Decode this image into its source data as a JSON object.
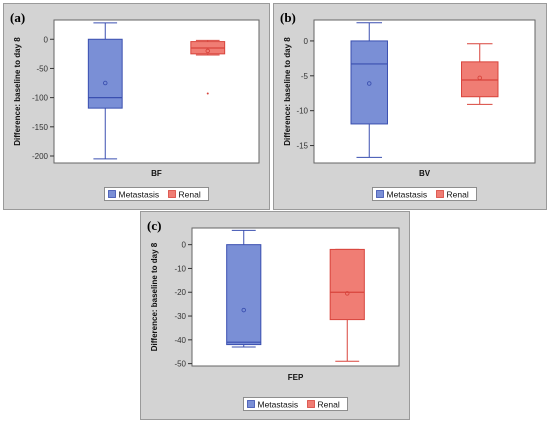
{
  "colors": {
    "metastasis_fill": "#7a8fd6",
    "metastasis_line": "#3a4fb0",
    "renal_fill": "#f07d74",
    "renal_line": "#d8443c",
    "panel_bg": "#d3d3d3"
  },
  "chart_data": [
    {
      "panel_label": "(a)",
      "type": "box",
      "xlabel": "BF",
      "ylabel": "Difference: baseline to day 8",
      "ylim": [
        -212,
        33
      ],
      "yticks": [
        0,
        -50,
        -100,
        -150,
        -200
      ],
      "legend": [
        "Metastasis",
        "Renal"
      ],
      "series": [
        {
          "name": "Metastasis",
          "whisker_low": -205,
          "q1": -118,
          "median": -100,
          "q3": 0,
          "whisker_high": 28,
          "mean": -75,
          "outliers": []
        },
        {
          "name": "Renal",
          "whisker_low": -27,
          "q1": -25,
          "median": -15,
          "q3": -4,
          "whisker_high": -2,
          "mean": -20,
          "outliers": [
            -93
          ]
        }
      ]
    },
    {
      "panel_label": "(b)",
      "type": "box",
      "xlabel": "BV",
      "ylabel": "Difference: baseline to day 8",
      "ylim": [
        -17.5,
        3
      ],
      "yticks": [
        0,
        -5,
        -10,
        -15
      ],
      "legend": [
        "Metastasis",
        "Renal"
      ],
      "series": [
        {
          "name": "Metastasis",
          "whisker_low": -16.7,
          "q1": -11.9,
          "median": -3.3,
          "q3": 0,
          "whisker_high": 2.6,
          "mean": -6.1,
          "outliers": []
        },
        {
          "name": "Renal",
          "whisker_low": -9.1,
          "q1": -8,
          "median": -5.6,
          "q3": -3,
          "whisker_high": -0.4,
          "mean": -5.3,
          "outliers": []
        }
      ]
    },
    {
      "panel_label": "(c)",
      "type": "box",
      "xlabel": "FEP",
      "ylabel": "Difference: baseline to day 8",
      "ylim": [
        -51,
        7
      ],
      "yticks": [
        0,
        -10,
        -20,
        -30,
        -40,
        -50
      ],
      "legend": [
        "Metastasis",
        "Renal"
      ],
      "series": [
        {
          "name": "Metastasis",
          "whisker_low": -43,
          "q1": -42,
          "median": -41,
          "q3": 0,
          "whisker_high": 6,
          "mean": -27.5,
          "outliers": []
        },
        {
          "name": "Renal",
          "whisker_low": -49,
          "q1": -31.5,
          "median": -20,
          "q3": -2,
          "whisker_high": -2,
          "mean": -20.5,
          "outliers": []
        }
      ]
    }
  ]
}
